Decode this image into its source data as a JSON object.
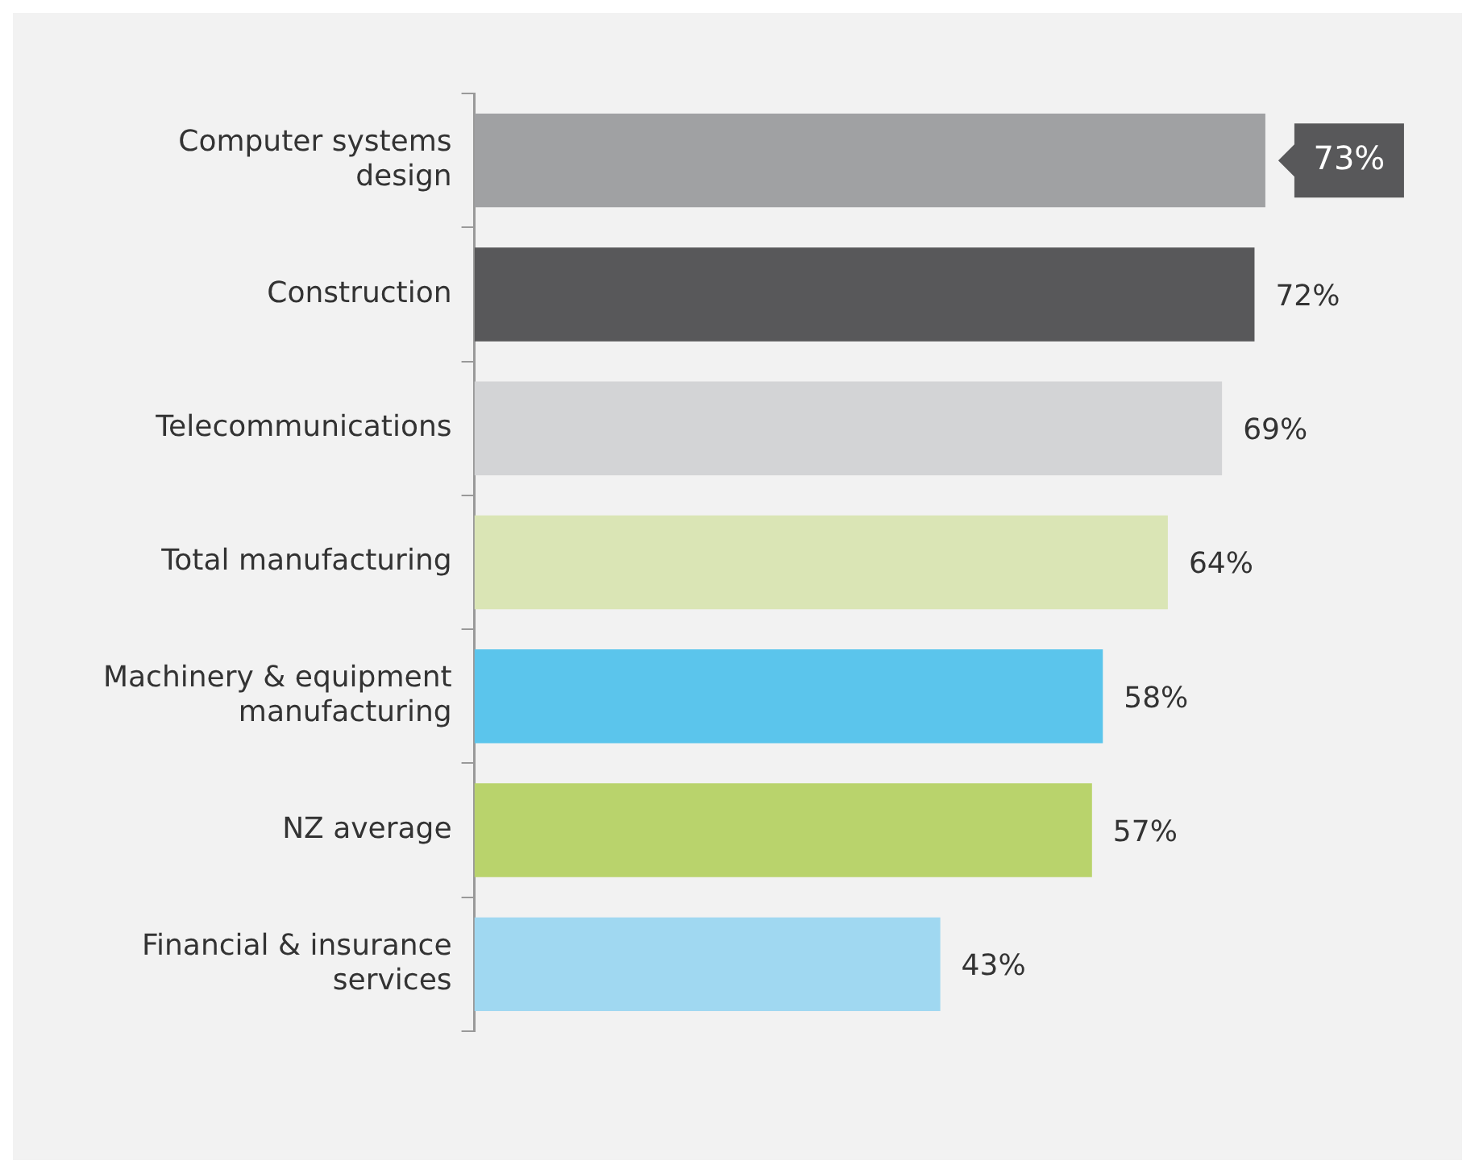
{
  "chart_data": {
    "type": "bar",
    "orientation": "horizontal",
    "categories": [
      "Computer systems design",
      "Construction",
      "Telecommunications",
      "Total manufacturing",
      "Machinery & equipment manufacturing",
      "NZ average",
      "Financial & insurance services"
    ],
    "values": [
      73,
      72,
      69,
      64,
      58,
      57,
      43
    ],
    "value_labels": [
      "73%",
      "72%",
      "69%",
      "64%",
      "58%",
      "57%",
      "43%"
    ],
    "colors": [
      "#a0a1a3",
      "#58585a",
      "#d3d4d6",
      "#dae5b5",
      "#5bc5ec",
      "#b9d36c",
      "#a0d8f1"
    ],
    "grid": false,
    "legend": false
  }
}
